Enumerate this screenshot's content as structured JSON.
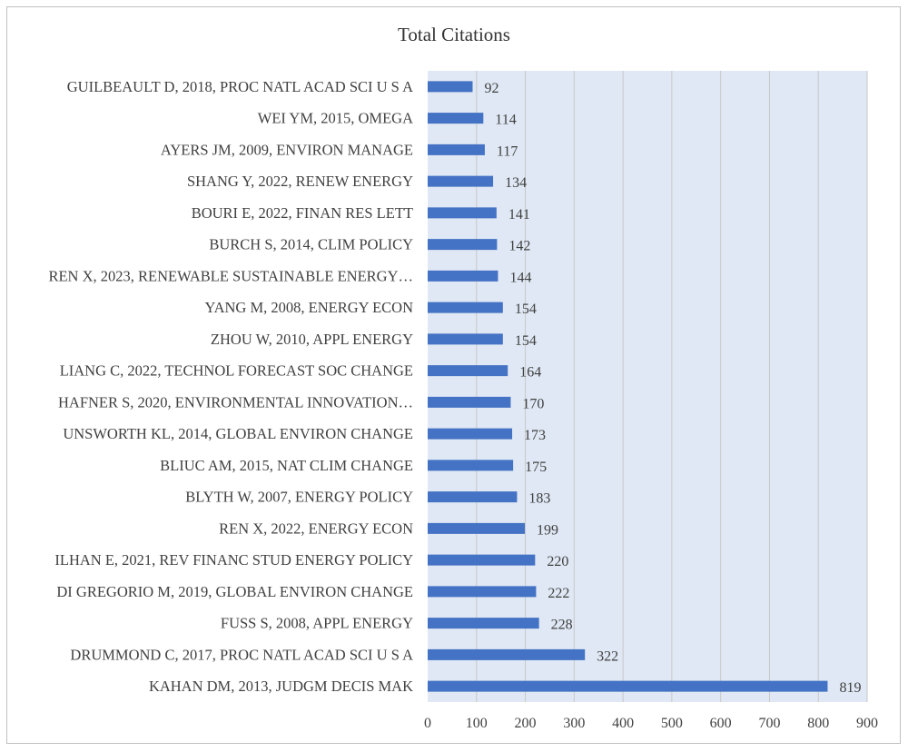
{
  "chart_data": {
    "type": "bar",
    "orientation": "horizontal",
    "title": "Total Citations",
    "categories": [
      "KAHAN DM, 2013, JUDGM DECIS MAK",
      "DRUMMOND C, 2017, PROC NATL ACAD SCI U S A",
      "FUSS S, 2008, APPL ENERGY",
      "DI GREGORIO M, 2019, GLOBAL ENVIRON CHANGE",
      "ILHAN E, 2021, REV FINANC STUD ENERGY POLICY",
      "REN X, 2022, ENERGY ECON",
      "BLYTH W, 2007, ENERGY POLICY",
      "BLIUC AM, 2015, NAT CLIM CHANGE",
      "UNSWORTH KL, 2014, GLOBAL ENVIRON CHANGE",
      "HAFNER S, 2020, ENVIRONMENTAL INNOVATION…",
      "LIANG C, 2022, TECHNOL FORECAST SOC CHANGE",
      "ZHOU W, 2010, APPL ENERGY",
      "YANG M, 2008, ENERGY ECON",
      "REN X, 2023, RENEWABLE SUSTAINABLE ENERGY…",
      "BURCH S, 2014, CLIM POLICY",
      "BOURI E, 2022, FINAN RES LETT",
      "SHANG Y, 2022, RENEW ENERGY",
      "AYERS JM, 2009, ENVIRON MANAGE",
      "WEI YM, 2015, OMEGA",
      "GUILBEAULT D, 2018, PROC NATL ACAD SCI U S A"
    ],
    "values": [
      819,
      322,
      228,
      222,
      220,
      199,
      183,
      175,
      173,
      170,
      164,
      154,
      154,
      144,
      142,
      141,
      134,
      117,
      114,
      92
    ],
    "xlim": [
      0,
      900
    ],
    "xticks": [
      0,
      100,
      200,
      300,
      400,
      500,
      600,
      700,
      800,
      900
    ],
    "grid": "vertical",
    "data_labels": true,
    "colors": {
      "bar": "#4472c4",
      "plot_bg": "#dfe8f4",
      "grid": "#c8c8c8"
    }
  }
}
